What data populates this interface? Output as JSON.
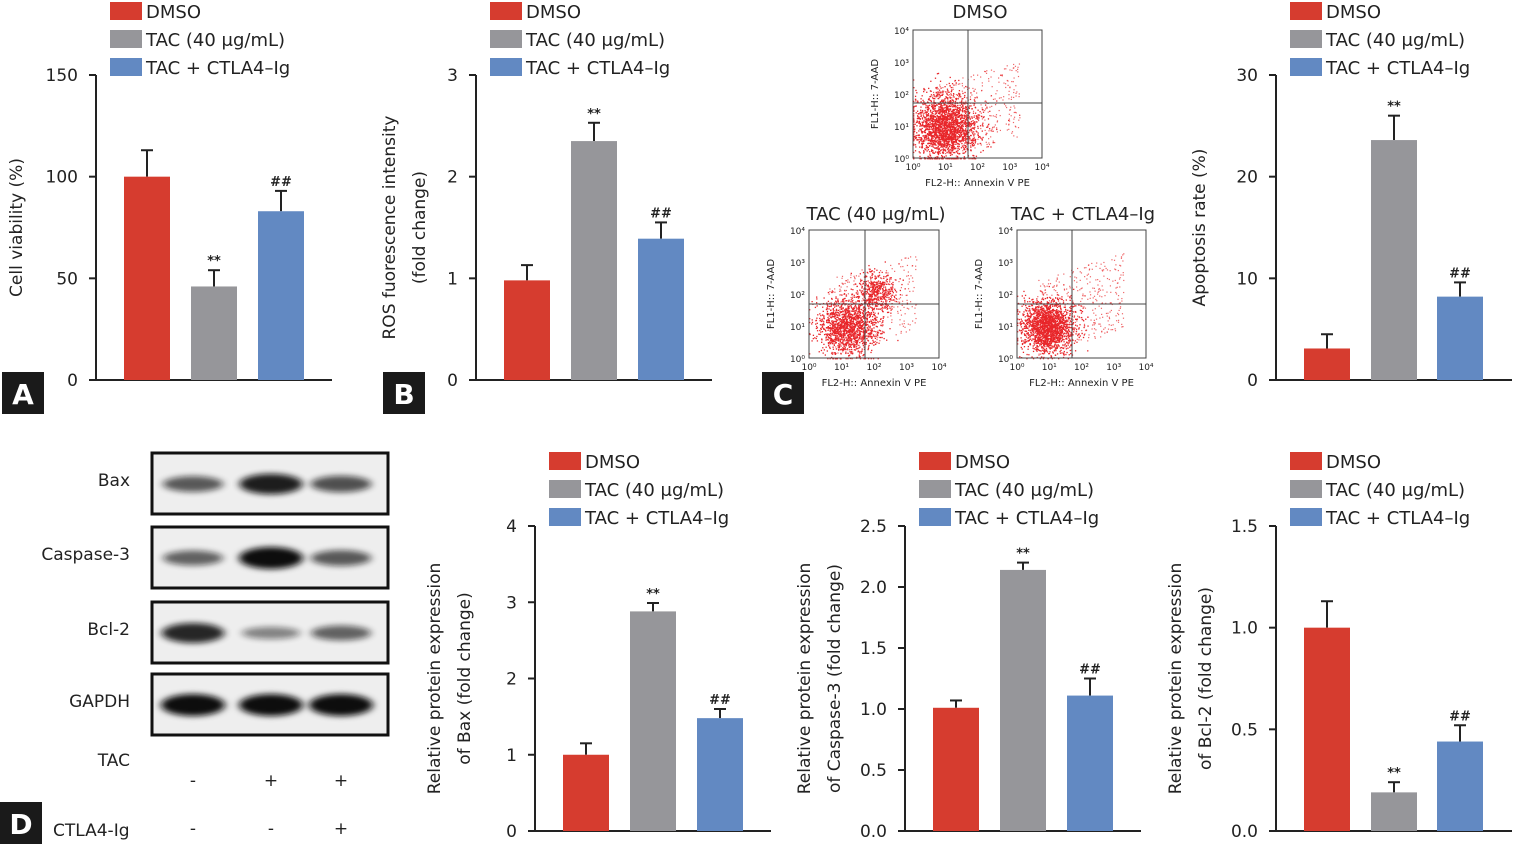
{
  "colors": {
    "DMSO": "#d63c2f",
    "TAC": "#96969a",
    "CTLA": "#6289c2",
    "flow": "#e8262a"
  },
  "legend": [
    "DMSO",
    "TAC (40 μg/mL)",
    "TAC + CTLA4–Ig"
  ],
  "panel_labels": {
    "A": "A",
    "B": "B",
    "C": "C",
    "D": "D"
  },
  "chart_data": [
    {
      "id": "A",
      "type": "bar",
      "ylabel": [
        "Cell viability (%)"
      ],
      "ylim": [
        0,
        150
      ],
      "yticks": [
        "0",
        "50",
        "100",
        "150"
      ],
      "ytick_values": [
        0,
        50,
        100,
        150
      ],
      "categories": [
        "DMSO",
        "TAC (40 μg/mL)",
        "TAC + CTLA4–Ig"
      ],
      "values": [
        100,
        46,
        83
      ],
      "errors": [
        13,
        8,
        10
      ],
      "annotations": [
        "",
        "**",
        "##"
      ]
    },
    {
      "id": "B",
      "type": "bar",
      "ylabel": [
        "ROS fuorescence intensity",
        "(fold change)"
      ],
      "ylim": [
        0,
        3
      ],
      "yticks": [
        "0",
        "1",
        "2",
        "3"
      ],
      "ytick_values": [
        0,
        1,
        2,
        3
      ],
      "categories": [
        "DMSO",
        "TAC (40 μg/mL)",
        "TAC + CTLA4–Ig"
      ],
      "values": [
        0.98,
        2.35,
        1.39
      ],
      "errors": [
        0.15,
        0.18,
        0.16
      ],
      "annotations": [
        "",
        "**",
        "##"
      ]
    },
    {
      "id": "C-apoptosis",
      "type": "bar",
      "ylabel": [
        "Apoptosis rate (%)"
      ],
      "ylim": [
        0,
        30
      ],
      "yticks": [
        "0",
        "10",
        "20",
        "30"
      ],
      "ytick_values": [
        0,
        10,
        20,
        30
      ],
      "categories": [
        "DMSO",
        "TAC (40 μg/mL)",
        "TAC + CTLA4–Ig"
      ],
      "values": [
        3.1,
        23.6,
        8.2
      ],
      "errors": [
        1.4,
        2.4,
        1.4
      ],
      "annotations": [
        "",
        "**",
        "##"
      ]
    },
    {
      "id": "D-bax",
      "type": "bar",
      "ylabel": [
        "Relative protein expression",
        "of Bax (fold change)"
      ],
      "ylim": [
        0,
        4
      ],
      "yticks": [
        "0",
        "1",
        "2",
        "3",
        "4"
      ],
      "ytick_values": [
        0,
        1,
        2,
        3,
        4
      ],
      "categories": [
        "DMSO",
        "TAC (40 μg/mL)",
        "TAC + CTLA4–Ig"
      ],
      "values": [
        1.0,
        2.88,
        1.48
      ],
      "errors": [
        0.15,
        0.11,
        0.12
      ],
      "annotations": [
        "",
        "**",
        "##"
      ]
    },
    {
      "id": "D-caspase3",
      "type": "bar",
      "ylabel": [
        "Relative protein expression",
        "of Caspase-3 (fold change)"
      ],
      "ylim": [
        0,
        2.5
      ],
      "yticks": [
        "0.0",
        "0.5",
        "1.0",
        "1.5",
        "2.0",
        "2.5"
      ],
      "ytick_values": [
        0,
        0.5,
        1,
        1.5,
        2,
        2.5
      ],
      "categories": [
        "DMSO",
        "TAC (40 μg/mL)",
        "TAC + CTLA4–Ig"
      ],
      "values": [
        1.01,
        2.14,
        1.11
      ],
      "errors": [
        0.06,
        0.06,
        0.14
      ],
      "annotations": [
        "",
        "**",
        "##"
      ]
    },
    {
      "id": "D-bcl2",
      "type": "bar",
      "ylabel": [
        "Relative protein expression",
        "of Bcl-2 (fold change)"
      ],
      "ylim": [
        0,
        1.5
      ],
      "yticks": [
        "0.0",
        "0.5",
        "1.0",
        "1.5"
      ],
      "ytick_values": [
        0,
        0.5,
        1,
        1.5
      ],
      "categories": [
        "DMSO",
        "TAC (40 μg/mL)",
        "TAC + CTLA4–Ig"
      ],
      "values": [
        1.0,
        0.19,
        0.44
      ],
      "errors": [
        0.13,
        0.05,
        0.08
      ],
      "annotations": [
        "",
        "**",
        "##"
      ]
    }
  ],
  "flow": {
    "xlabel": "FL2-H:: Annexin V PE",
    "ylabel": "FL1-H:: 7-AAD",
    "ticks": [
      "10⁰",
      "10¹",
      "10²",
      "10³",
      "10⁴"
    ],
    "plots": [
      {
        "title": "DMSO"
      },
      {
        "title": "TAC (40 μg/mL)"
      },
      {
        "title": "TAC + CTLA4–Ig"
      }
    ]
  },
  "blot": {
    "rows": [
      {
        "label": "Bax",
        "intensity": [
          0.55,
          0.9,
          0.6
        ]
      },
      {
        "label": "Caspase-3",
        "intensity": [
          0.5,
          1.0,
          0.55
        ]
      },
      {
        "label": "Bcl-2",
        "intensity": [
          0.85,
          0.3,
          0.5
        ]
      },
      {
        "label": "GAPDH",
        "intensity": [
          1.0,
          1.0,
          1.0
        ]
      }
    ],
    "treatments": [
      {
        "label": "TAC",
        "signs": [
          "-",
          "+",
          "+"
        ]
      },
      {
        "label": "CTLA4-Ig",
        "signs": [
          "-",
          "-",
          "+"
        ]
      }
    ]
  }
}
